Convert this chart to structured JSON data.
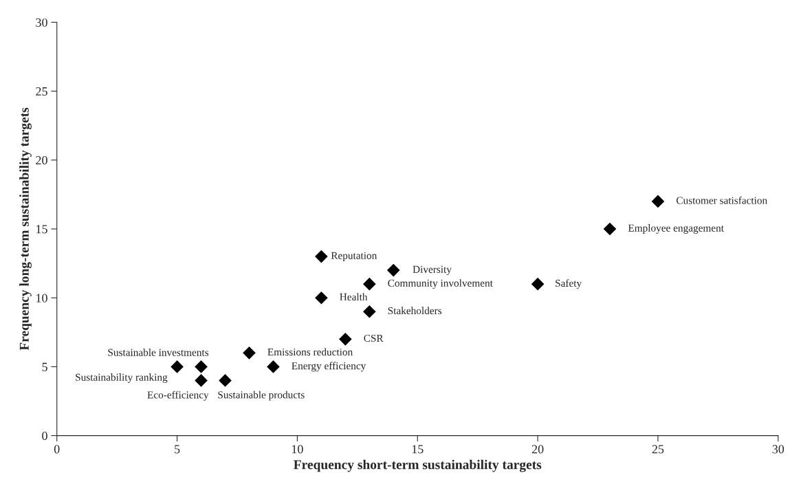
{
  "chart_data": {
    "type": "scatter",
    "xlabel": "Frequency short-term sustainability targets",
    "ylabel": "Frequency long-term sustainability targets",
    "x": [
      25,
      23,
      11,
      14,
      13,
      20,
      11,
      13,
      12,
      8,
      9,
      6,
      5,
      6,
      7
    ],
    "series": [
      {
        "color": "#000000",
        "values": [
          17,
          15,
          13,
          12,
          11,
          11,
          10,
          9,
          7,
          6,
          5,
          5,
          5,
          4,
          4
        ]
      }
    ],
    "marker": "diamond",
    "grid": false,
    "legend": false,
    "xlim": [
      0,
      30
    ],
    "ylim": [
      0,
      30
    ],
    "xticks": [
      0,
      5,
      10,
      15,
      20,
      25,
      30
    ],
    "yticks": [
      0,
      5,
      10,
      15,
      20,
      25,
      30
    ],
    "annotations": [
      {
        "text": "Customer satisfaction",
        "x": 25,
        "y": 17
      },
      {
        "text": "Employee engagement",
        "x": 23,
        "y": 15
      },
      {
        "text": "Reputation",
        "x": 11,
        "y": 13
      },
      {
        "text": "Diversity",
        "x": 14,
        "y": 12
      },
      {
        "text": "Community involvement",
        "x": 13,
        "y": 11
      },
      {
        "text": "Safety",
        "x": 20,
        "y": 11
      },
      {
        "text": "Health",
        "x": 11,
        "y": 10
      },
      {
        "text": "Stakeholders",
        "x": 13,
        "y": 9
      },
      {
        "text": "CSR",
        "x": 12,
        "y": 7
      },
      {
        "text": "Emissions reduction",
        "x": 8,
        "y": 6
      },
      {
        "text": "Energy efficiency",
        "x": 9,
        "y": 5
      },
      {
        "text": "Sustainable investments",
        "x": 6,
        "y": 5
      },
      {
        "text": "Sustainability ranking",
        "x": 5,
        "y": 5
      },
      {
        "text": "Eco-efficiency",
        "x": 6,
        "y": 4
      },
      {
        "text": "Sustainable products",
        "x": 7,
        "y": 4
      }
    ]
  }
}
